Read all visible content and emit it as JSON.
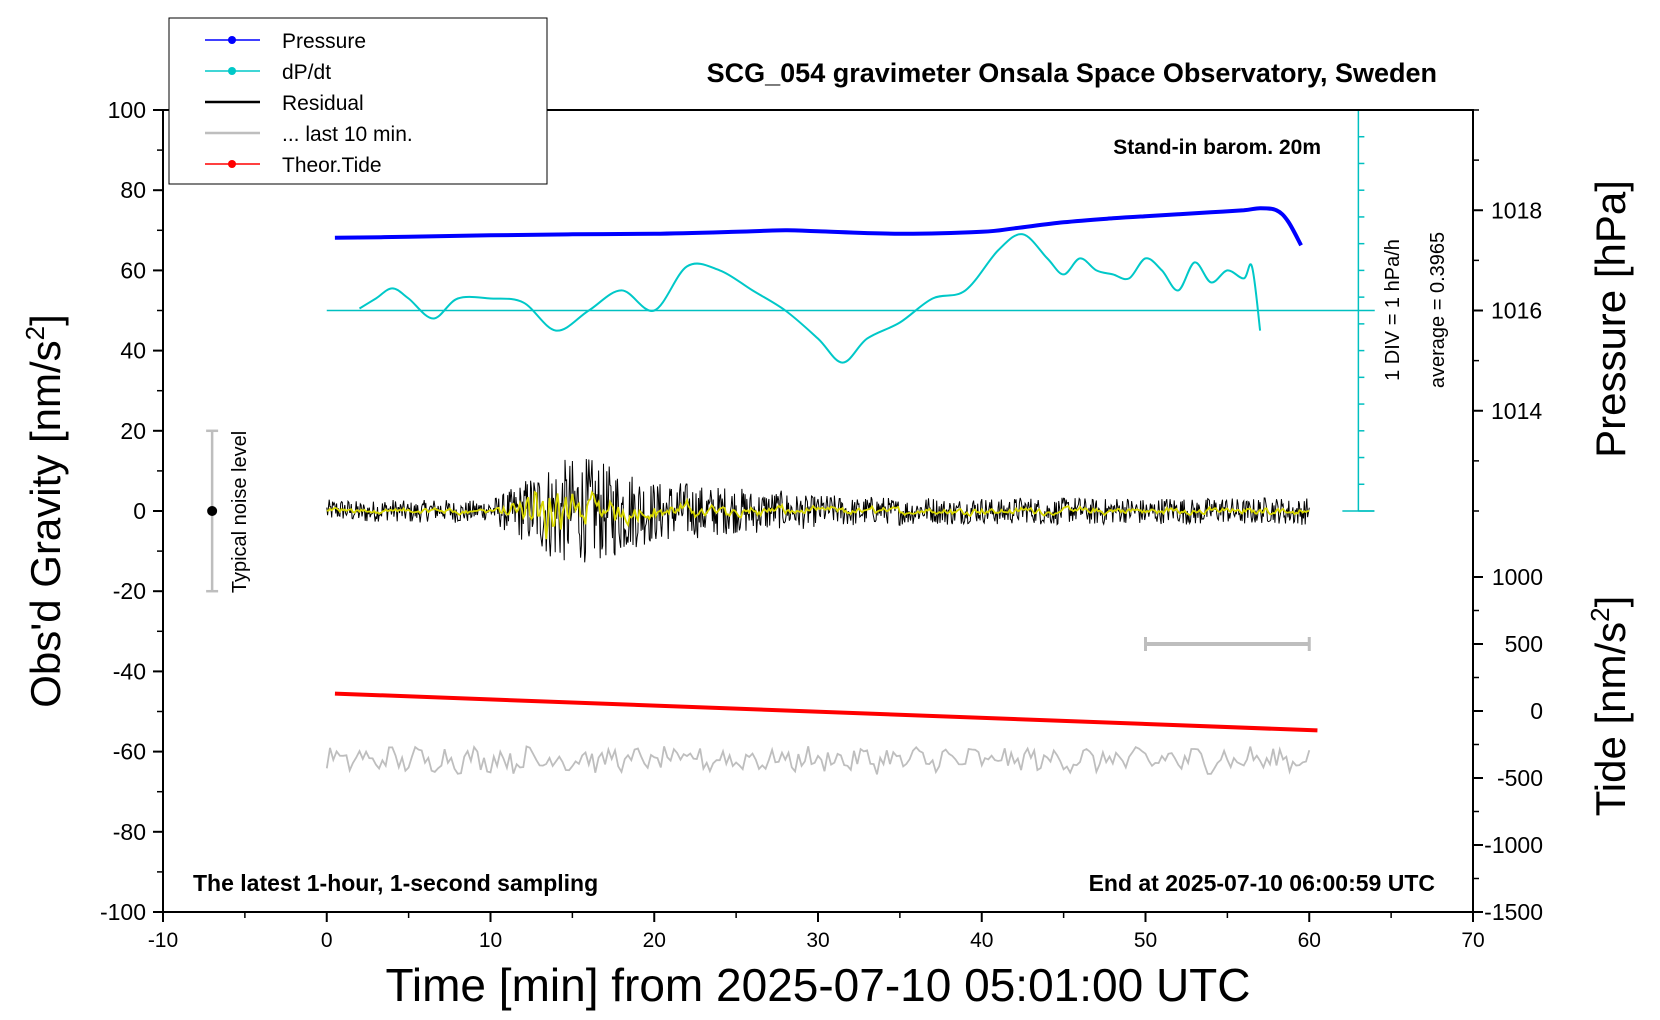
{
  "chart_data": {
    "type": "line",
    "title": "SCG_054 gravimeter Onsala Space Observatory, Sweden",
    "xlabel": "Time [min] from 2025-07-10 05:01:00 UTC",
    "ylabel_main": "Obs'd Gravity [nm/s",
    "ylabel_main_sup": "2",
    "ylabel_main_close": "]",
    "ylabel_pressure": "Pressure [hPa]",
    "ylabel_tide": "Tide [nm/s",
    "ylabel_tide_sup": "2",
    "ylabel_tide_close": "]",
    "xlim": [
      -10,
      70
    ],
    "ylim": [
      -100,
      100
    ],
    "x_ticks": [
      "-10",
      "0",
      "10",
      "20",
      "30",
      "40",
      "50",
      "60",
      "70"
    ],
    "x_tick_values": [
      -10,
      0,
      10,
      20,
      30,
      40,
      50,
      60,
      70
    ],
    "y_ticks": [
      "100",
      "80",
      "60",
      "40",
      "20",
      "0",
      "-20",
      "-40",
      "-60",
      "-80",
      "-100"
    ],
    "y_tick_values": [
      100,
      80,
      60,
      40,
      20,
      0,
      -20,
      -40,
      -60,
      -80,
      -100
    ],
    "pressure_ticks": [
      "1018",
      "1016",
      "1014"
    ],
    "pressure_tick_values": [
      1018,
      1016,
      1014
    ],
    "pressure_axis_range": [
      1012,
      1020
    ],
    "tide_ticks": [
      "1000",
      "500",
      "0",
      "-500",
      "-1000",
      "-1500"
    ],
    "tide_tick_values": [
      1000,
      500,
      0,
      -500,
      -1000,
      -1500
    ],
    "tide_axis_range": [
      -1500,
      1000
    ],
    "annotations": {
      "stand_in": "Stand-in barom. 20m",
      "latest": "The latest 1-hour, 1-second sampling",
      "end_at": "End at 2025-07-10 06:00:59 UTC",
      "div_label": "1 DIV = 1 hPa/h",
      "average_label": "average = 0.3965",
      "noise_label": "Typical noise level"
    },
    "legend": [
      {
        "name": "Pressure",
        "color": "#0000ff",
        "marker": true
      },
      {
        "name": "dP/dt",
        "color": "#00c8c8",
        "marker": true
      },
      {
        "name": "Residual",
        "color": "#000000",
        "marker": false
      },
      {
        "name": "... last 10 min.",
        "color": "#bebebe",
        "marker": false
      },
      {
        "name": "Theor.Tide",
        "color": "#ff0000",
        "marker": true
      }
    ],
    "series": [
      {
        "name": "Pressure",
        "unit": "hPa",
        "x": [
          0.5,
          5,
          10,
          15,
          20,
          25,
          28,
          30,
          35,
          40,
          42,
          45,
          48,
          50,
          52,
          54,
          56,
          57,
          58,
          58.7,
          59.5
        ],
        "values": [
          1017.45,
          1017.47,
          1017.5,
          1017.52,
          1017.53,
          1017.57,
          1017.6,
          1017.58,
          1017.53,
          1017.57,
          1017.64,
          1017.76,
          1017.84,
          1017.88,
          1017.92,
          1017.96,
          1018.0,
          1018.04,
          1018.0,
          1017.78,
          1017.3
        ]
      },
      {
        "name": "dP/dt",
        "unit": "hPa/h",
        "baseline_gravity": 50,
        "x": [
          2,
          3,
          4,
          5,
          6.5,
          8,
          10,
          12,
          14,
          16,
          18,
          20,
          22,
          24,
          26,
          28,
          30,
          31.5,
          33,
          35,
          37,
          39,
          41,
          42.5,
          44,
          45,
          46,
          47,
          48,
          49,
          50,
          51,
          52,
          53,
          54,
          55,
          56,
          56.5,
          57
        ],
        "values": [
          50.5,
          53,
          55.5,
          53,
          48,
          53,
          53,
          52,
          45,
          50,
          55,
          50,
          61,
          60,
          55,
          50,
          43,
          37,
          43,
          47,
          53,
          55,
          65,
          69,
          63,
          59,
          63,
          60,
          59,
          58,
          63,
          60,
          55,
          62,
          57,
          60,
          58,
          61,
          45
        ]
      },
      {
        "name": "Residual",
        "unit": "nm/s2",
        "x": [
          0,
          5,
          10,
          12,
          14,
          16,
          18,
          20,
          23,
          26,
          30,
          35,
          40,
          45,
          50,
          55,
          60
        ],
        "amplitude": [
          2.5,
          2.5,
          2.5,
          7,
          12,
          12,
          10,
          7,
          6,
          5,
          3.5,
          3,
          3,
          3,
          3,
          3,
          3
        ]
      },
      {
        "name": "... last 10 min.",
        "unit": "nm/s2",
        "x_range": [
          0,
          60
        ],
        "mean": -62,
        "amplitude": 2.5
      },
      {
        "name": "Theor.Tide",
        "unit": "nm/s2",
        "x": [
          0.5,
          60.5
        ],
        "values": [
          130,
          -145
        ]
      }
    ],
    "error_bars": [
      {
        "name": "Typical noise level",
        "x": -7,
        "center": 0,
        "low": -20,
        "high": 20
      },
      {
        "name": "last 10 min. span",
        "x_range": [
          50,
          60
        ],
        "tide_value": 500
      }
    ],
    "pressure_scale_bar": {
      "x": 63,
      "range": [
        0,
        100
      ],
      "divisions": 15
    }
  }
}
